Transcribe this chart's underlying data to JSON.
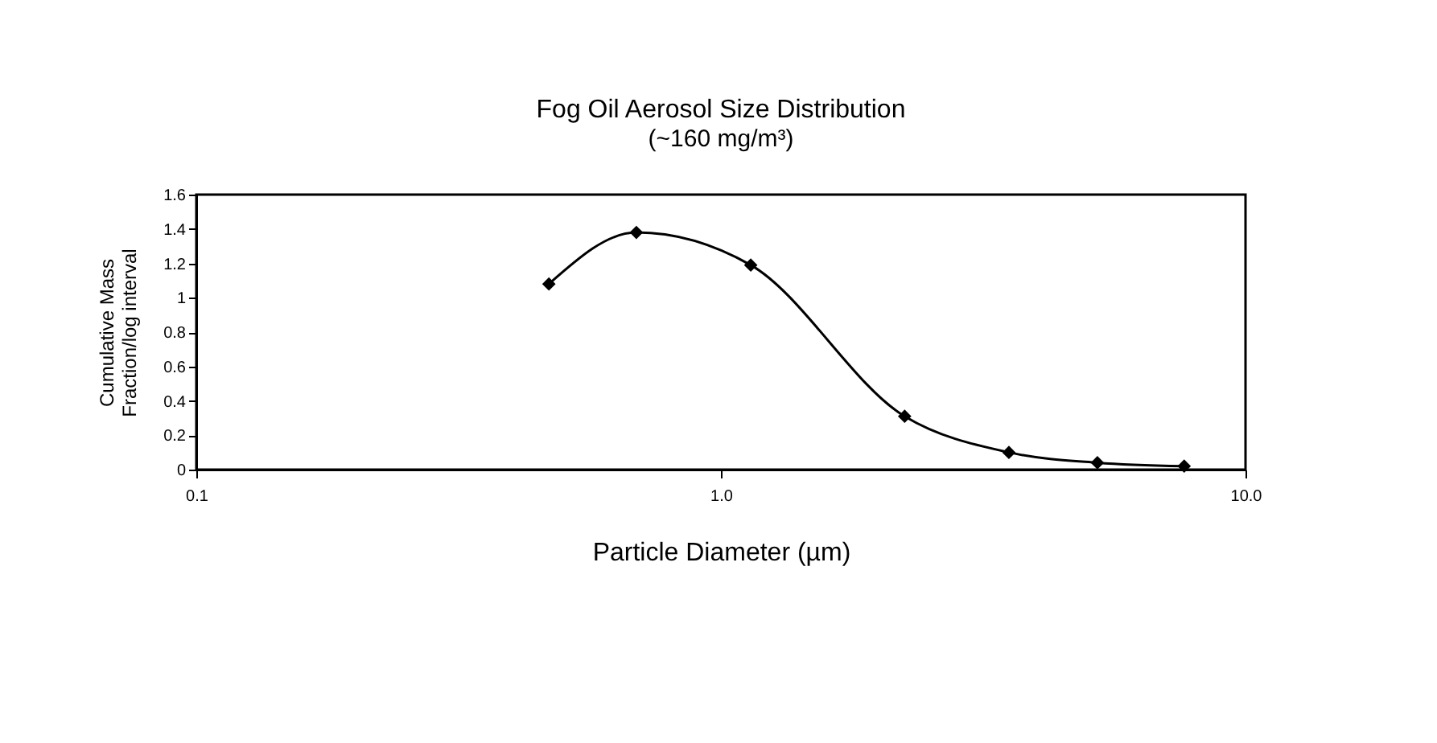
{
  "chart_data": {
    "type": "line",
    "title": "Fog Oil Aerosol Size Distribution",
    "subtitle": "(~160 mg/m³)",
    "xlabel": "Particle Diameter (µm)",
    "ylabel": "Cumulative Mass\nFraction/log interval",
    "x": [
      0.47,
      0.69,
      1.14,
      2.24,
      3.54,
      5.22,
      7.64
    ],
    "series": [
      {
        "color": "#000000",
        "values": [
          1.08,
          1.38,
          1.19,
          0.31,
          0.1,
          0.04,
          0.02
        ]
      }
    ],
    "log": "x",
    "xlim": [
      0.1,
      10
    ],
    "xticks": [
      0.1,
      {
        "value": 1,
        "label": "1.0"
      },
      {
        "value": 10,
        "label": "10.0"
      }
    ],
    "ylim": [
      0,
      1.6
    ],
    "yticks": [
      0,
      0.2,
      0.4,
      0.6,
      0.8,
      1,
      1.2,
      1.4,
      1.6
    ],
    "grid": false,
    "marker": "diamond",
    "line_style": "solid"
  }
}
